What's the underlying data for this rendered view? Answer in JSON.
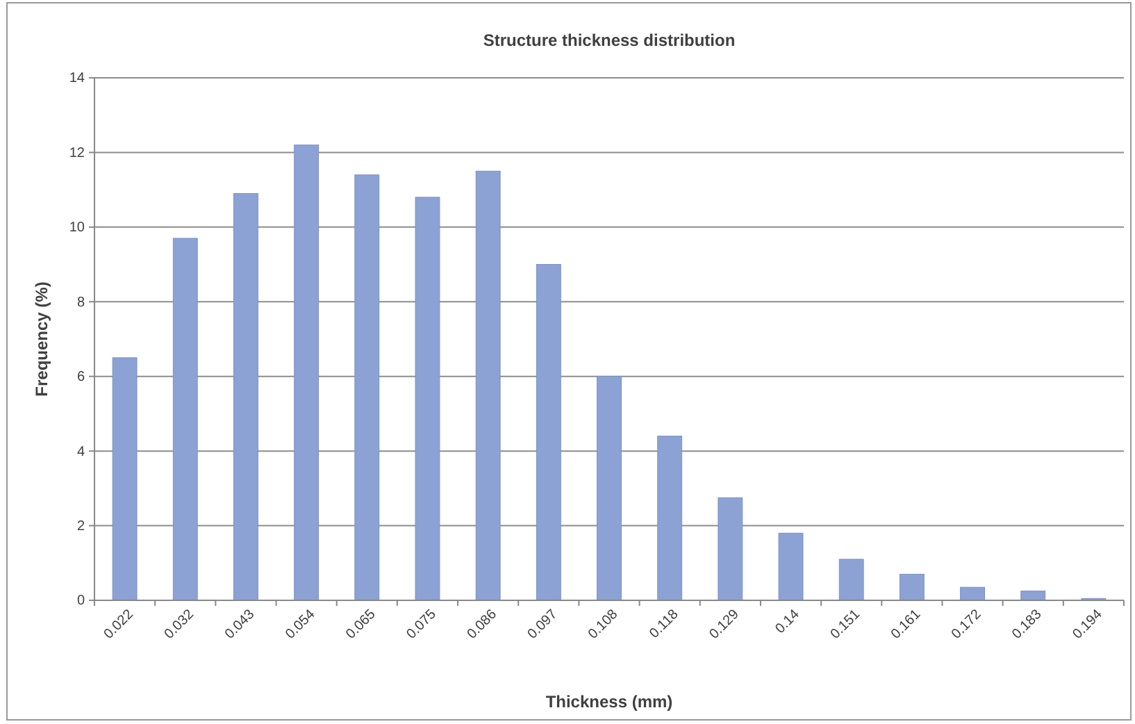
{
  "chart_data": {
    "type": "bar",
    "title": "Structure thickness distribution",
    "xlabel": "Thickness (mm)",
    "ylabel": "Frequency (%)",
    "categories": [
      "0.022",
      "0.032",
      "0.043",
      "0.054",
      "0.065",
      "0.075",
      "0.086",
      "0.097",
      "0.108",
      "0.118",
      "0.129",
      "0.14",
      "0.151",
      "0.161",
      "0.172",
      "0.183",
      "0.194"
    ],
    "values": [
      6.5,
      9.7,
      10.9,
      12.2,
      11.4,
      10.8,
      11.5,
      9.0,
      6.0,
      4.4,
      2.75,
      1.8,
      1.1,
      0.7,
      0.35,
      0.25,
      0.05
    ],
    "color": "#8da2d4",
    "ylim": [
      0,
      14
    ],
    "yticks": [
      0,
      2,
      4,
      6,
      8,
      10,
      12,
      14
    ],
    "grid": "y"
  }
}
